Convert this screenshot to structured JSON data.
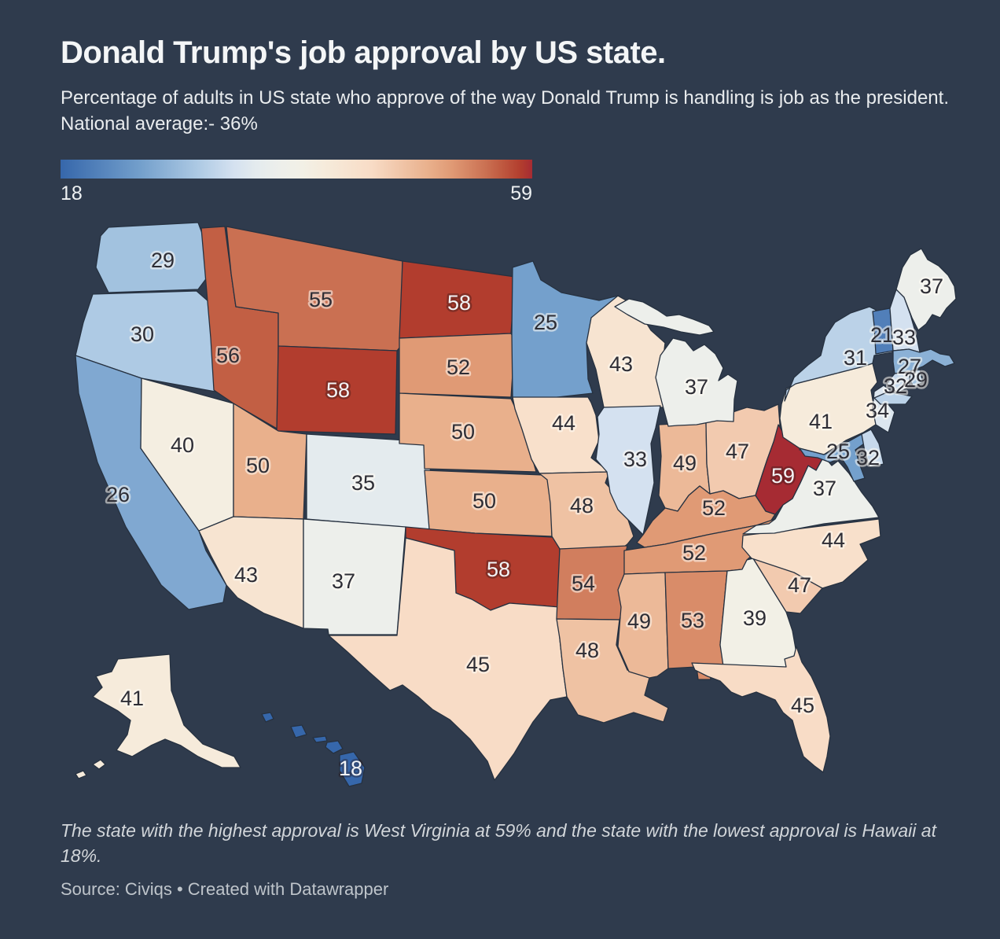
{
  "header": {
    "title": "Donald Trump's job approval by US state.",
    "subtitle": "Percentage of adults in US state who approve of the way Donald Trump is handling is job as the president. National average:- 36%"
  },
  "legend": {
    "min_label": "18",
    "max_label": "59"
  },
  "footnote": "The state with the highest approval is West Virginia at 59% and the state with the lowest approval is Hawaii at 18%.",
  "source": "Source: Civiqs • Created with Datawrapper",
  "colors": {
    "background": "#2f3b4d",
    "state_border": "#263140",
    "label_dark": "#2d2d35",
    "label_light": "#f2f4f6",
    "title_text": "#f4f6f7",
    "subtitle_text": "#e9ecee",
    "footnote_text": "#d2d6da",
    "source_text": "#bfc5cb"
  },
  "chart_data": {
    "type": "choropleth_map",
    "title": "Donald Trump's job approval by US state.",
    "unit": "%",
    "national_average": 36,
    "legend": {
      "min": 18,
      "max": 59
    },
    "min": {
      "state": "Hawaii",
      "value": 18
    },
    "max": {
      "state": "West Virginia",
      "value": 59
    },
    "color_scale": {
      "domain": [
        18,
        59
      ],
      "stops": [
        [
          18,
          "#3667ab"
        ],
        [
          25,
          "#74a0cc"
        ],
        [
          30,
          "#aecae4"
        ],
        [
          33,
          "#d4e1f0"
        ],
        [
          35,
          "#e4ebee"
        ],
        [
          37,
          "#edefeb"
        ],
        [
          39,
          "#f2f0e6"
        ],
        [
          41,
          "#f6ebdb"
        ],
        [
          45,
          "#f8dcc6"
        ],
        [
          50,
          "#e9b08c"
        ],
        [
          52,
          "#e09a75"
        ],
        [
          55,
          "#ca7052"
        ],
        [
          56,
          "#c25f44"
        ],
        [
          58,
          "#b23d2e"
        ],
        [
          59,
          "#a62b33"
        ]
      ]
    },
    "states": [
      {
        "abbr": "WA",
        "name": "Washington",
        "value": 29
      },
      {
        "abbr": "OR",
        "name": "Oregon",
        "value": 30
      },
      {
        "abbr": "CA",
        "name": "California",
        "value": 26
      },
      {
        "abbr": "NV",
        "name": "Nevada",
        "value": 40
      },
      {
        "abbr": "ID",
        "name": "Idaho",
        "value": 56
      },
      {
        "abbr": "MT",
        "name": "Montana",
        "value": 55
      },
      {
        "abbr": "WY",
        "name": "Wyoming",
        "value": 58,
        "light_label": true
      },
      {
        "abbr": "UT",
        "name": "Utah",
        "value": 50
      },
      {
        "abbr": "CO",
        "name": "Colorado",
        "value": 35
      },
      {
        "abbr": "AZ",
        "name": "Arizona",
        "value": 43
      },
      {
        "abbr": "NM",
        "name": "New Mexico",
        "value": 37
      },
      {
        "abbr": "ND",
        "name": "North Dakota",
        "value": 58,
        "light_label": true
      },
      {
        "abbr": "SD",
        "name": "South Dakota",
        "value": 52
      },
      {
        "abbr": "NE",
        "name": "Nebraska",
        "value": 50
      },
      {
        "abbr": "KS",
        "name": "Kansas",
        "value": 50
      },
      {
        "abbr": "OK",
        "name": "Oklahoma",
        "value": 58,
        "light_label": true
      },
      {
        "abbr": "TX",
        "name": "Texas",
        "value": 45
      },
      {
        "abbr": "MN",
        "name": "Minnesota",
        "value": 25
      },
      {
        "abbr": "IA",
        "name": "Iowa",
        "value": 44
      },
      {
        "abbr": "MO",
        "name": "Missouri",
        "value": 48
      },
      {
        "abbr": "AR",
        "name": "Arkansas",
        "value": 54
      },
      {
        "abbr": "LA",
        "name": "Louisiana",
        "value": 48
      },
      {
        "abbr": "WI",
        "name": "Wisconsin",
        "value": 43
      },
      {
        "abbr": "IL",
        "name": "Illinois",
        "value": 33
      },
      {
        "abbr": "IN",
        "name": "Indiana",
        "value": 49
      },
      {
        "abbr": "OH",
        "name": "Ohio",
        "value": 47
      },
      {
        "abbr": "MI",
        "name": "Michigan",
        "value": 37
      },
      {
        "abbr": "KY",
        "name": "Kentucky",
        "value": 52
      },
      {
        "abbr": "TN",
        "name": "Tennessee",
        "value": 52
      },
      {
        "abbr": "MS",
        "name": "Mississippi",
        "value": 49
      },
      {
        "abbr": "AL",
        "name": "Alabama",
        "value": 53
      },
      {
        "abbr": "GA",
        "name": "Georgia",
        "value": 39
      },
      {
        "abbr": "SC",
        "name": "South Carolina",
        "value": 47
      },
      {
        "abbr": "FL",
        "name": "Florida",
        "value": 45
      },
      {
        "abbr": "NC",
        "name": "North Carolina",
        "value": 44
      },
      {
        "abbr": "VA",
        "name": "Virginia",
        "value": 37
      },
      {
        "abbr": "WV",
        "name": "West Virginia",
        "value": 59,
        "light_label": true
      },
      {
        "abbr": "PA",
        "name": "Pennsylvania",
        "value": 41
      },
      {
        "abbr": "MD",
        "name": "Maryland",
        "value": 25
      },
      {
        "abbr": "DE",
        "name": "Delaware",
        "value": 32
      },
      {
        "abbr": "NJ",
        "name": "New Jersey",
        "value": 34
      },
      {
        "abbr": "NY",
        "name": "New York",
        "value": 31
      },
      {
        "abbr": "VT",
        "name": "Vermont",
        "value": 21
      },
      {
        "abbr": "NH",
        "name": "New Hampshire",
        "value": 33
      },
      {
        "abbr": "ME",
        "name": "Maine",
        "value": 37
      },
      {
        "abbr": "MA",
        "name": "Massachusetts",
        "value": 27
      },
      {
        "abbr": "CT",
        "name": "Connecticut",
        "value": 32
      },
      {
        "abbr": "RI",
        "name": "Rhode Island",
        "value": 29
      },
      {
        "abbr": "AK",
        "name": "Alaska",
        "value": 41
      },
      {
        "abbr": "HI",
        "name": "Hawaii",
        "value": 18,
        "light_label": true
      }
    ]
  }
}
